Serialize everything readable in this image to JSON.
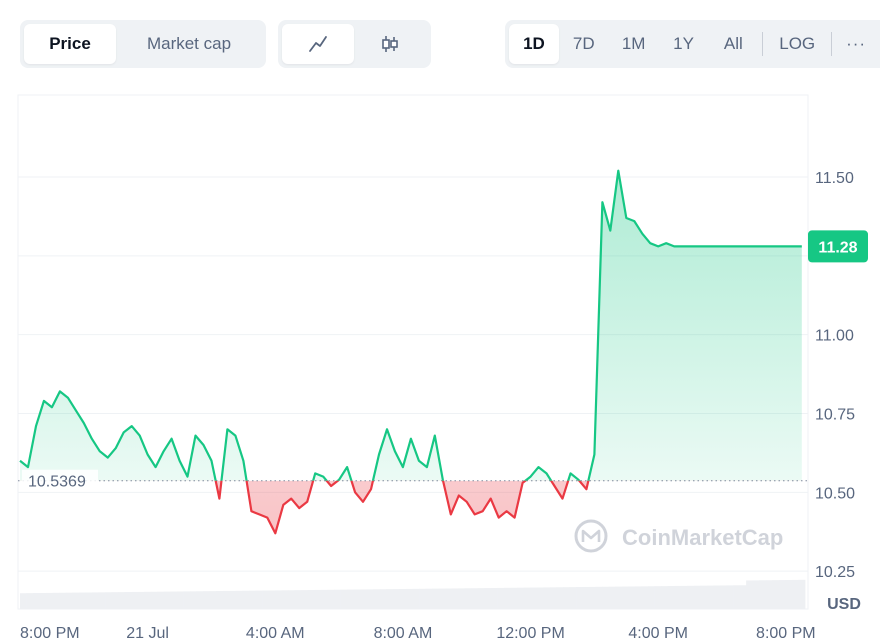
{
  "toolbar": {
    "price_label": "Price",
    "marketcap_label": "Market cap",
    "line_icon": "line-chart-icon",
    "candle_icon": "candlestick-icon",
    "ranges": [
      "1D",
      "7D",
      "1M",
      "1Y",
      "All"
    ],
    "log_label": "LOG",
    "more_label": "···"
  },
  "watermark": "CoinMarketCap",
  "colors": {
    "up": "#16c784",
    "down": "#ea3943",
    "axis_text": "#58667e"
  },
  "chart_data": {
    "type": "line",
    "x_ticks": [
      "8:00 PM",
      "21 Jul",
      "4:00 AM",
      "8:00 AM",
      "12:00 PM",
      "4:00 PM",
      "8:00 PM"
    ],
    "x_tick_hours": [
      0,
      4,
      8,
      12,
      16,
      20,
      24
    ],
    "x_range_hours": [
      0,
      24.6
    ],
    "y_ticks": [
      10.25,
      10.5,
      10.75,
      11.0,
      11.25,
      11.5
    ],
    "y_tick_labels": [
      "10.25",
      "10.50",
      "10.75",
      "11.00",
      "",
      "11.50"
    ],
    "ylim": [
      10.13,
      11.76
    ],
    "baseline": 10.5369,
    "baseline_label": "10.5369",
    "current_price": 11.28,
    "current_label": "11.28",
    "currency_label": "USD",
    "series": [
      {
        "x": [
          0,
          0.25,
          0.5,
          0.75,
          1,
          1.25,
          1.5,
          1.75,
          2,
          2.25,
          2.5,
          2.75,
          3,
          3.25,
          3.5,
          3.75,
          4,
          4.25,
          4.5,
          4.75,
          5,
          5.25,
          5.5,
          5.75,
          6,
          6.25,
          6.5,
          6.75,
          7,
          7.25,
          7.5,
          7.75,
          8,
          8.25,
          8.5,
          8.75,
          9,
          9.25,
          9.5,
          9.75,
          10,
          10.25,
          10.5,
          10.75,
          11,
          11.25,
          11.5,
          11.75,
          12,
          12.25,
          12.5,
          12.75,
          13,
          13.25,
          13.5,
          13.75,
          14,
          14.25,
          14.5,
          14.75,
          15,
          15.25,
          15.5,
          15.75,
          16,
          16.25,
          16.5,
          16.75,
          17,
          17.25,
          17.5,
          17.75,
          18,
          18.25,
          18.5,
          18.75,
          19,
          19.25,
          19.5,
          19.75,
          20,
          20.25,
          20.5,
          20.75,
          21,
          21.25,
          21.5,
          21.75,
          22,
          22.25,
          22.5,
          22.75,
          23,
          23.25,
          23.5,
          23.75,
          24,
          24.25,
          24.5
        ],
        "values": [
          10.6,
          10.58,
          10.71,
          10.79,
          10.77,
          10.82,
          10.8,
          10.76,
          10.72,
          10.67,
          10.63,
          10.61,
          10.64,
          10.69,
          10.71,
          10.68,
          10.62,
          10.58,
          10.63,
          10.67,
          10.6,
          10.55,
          10.68,
          10.65,
          10.6,
          10.48,
          10.7,
          10.68,
          10.6,
          10.44,
          10.43,
          10.42,
          10.37,
          10.46,
          10.48,
          10.45,
          10.47,
          10.56,
          10.55,
          10.52,
          10.54,
          10.58,
          10.5,
          10.47,
          10.51,
          10.62,
          10.7,
          10.63,
          10.58,
          10.67,
          10.6,
          10.58,
          10.68,
          10.54,
          10.43,
          10.49,
          10.47,
          10.43,
          10.44,
          10.48,
          10.42,
          10.44,
          10.42,
          10.53,
          10.55,
          10.58,
          10.56,
          10.52,
          10.48,
          10.56,
          10.54,
          10.51,
          10.62,
          11.42,
          11.33,
          11.52,
          11.37,
          11.36,
          11.32,
          11.29,
          11.28,
          11.29,
          11.28,
          11.28,
          11.28,
          11.28,
          11.28,
          11.28,
          11.28,
          11.28,
          11.28,
          11.28,
          11.28,
          11.28,
          11.28,
          11.28,
          11.28,
          11.28,
          11.28
        ]
      }
    ],
    "volume": {
      "start_fraction": 0.2,
      "end_fraction": 0.31
    }
  }
}
